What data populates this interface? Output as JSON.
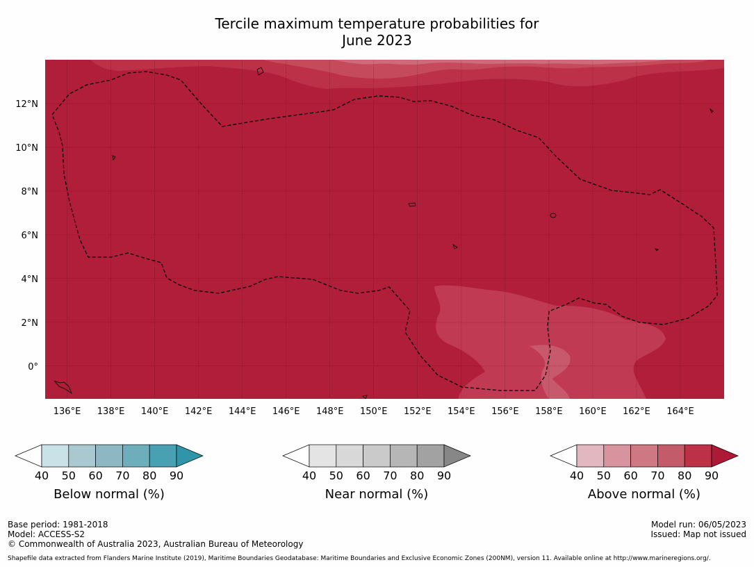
{
  "title": {
    "line1": "Tercile maximum temperature probabilities for",
    "line2": "June 2023"
  },
  "map": {
    "lon_range": [
      135,
      166
    ],
    "lat_range": [
      -1.5,
      14
    ],
    "background_color": "#b11e3a",
    "lon_ticks": [
      136,
      138,
      140,
      142,
      144,
      146,
      148,
      150,
      152,
      154,
      156,
      158,
      160,
      162,
      164
    ],
    "lon_labels": [
      "136°E",
      "138°E",
      "140°E",
      "142°E",
      "144°E",
      "146°E",
      "148°E",
      "150°E",
      "152°E",
      "154°E",
      "156°E",
      "158°E",
      "160°E",
      "162°E",
      "164°E"
    ],
    "lat_ticks": [
      0,
      2,
      4,
      6,
      8,
      10,
      12
    ],
    "lat_labels": [
      "0°",
      "2°N",
      "4°N",
      "6°N",
      "8°N",
      "10°N",
      "12°N"
    ],
    "grid": true,
    "eez_boundary_style": "dashed"
  },
  "colorbars": [
    {
      "id": "below",
      "title": "Below normal (%)",
      "ticks": [
        "40",
        "50",
        "60",
        "70",
        "80",
        "90"
      ],
      "colors": [
        "#ffffff",
        "#c8e2e8",
        "#a9c8cf",
        "#8db7c2",
        "#6eaebb",
        "#48a1b2",
        "#3195a9"
      ]
    },
    {
      "id": "near",
      "title": "Near normal (%)",
      "ticks": [
        "40",
        "50",
        "60",
        "70",
        "80",
        "90"
      ],
      "colors": [
        "#ffffff",
        "#e4e4e4",
        "#d8d8d8",
        "#cacaca",
        "#b6b6b6",
        "#a2a2a2",
        "#878787"
      ]
    },
    {
      "id": "above",
      "title": "Above normal (%)",
      "ticks": [
        "40",
        "50",
        "60",
        "70",
        "80",
        "90"
      ],
      "colors": [
        "#ffffff",
        "#e2b7c0",
        "#d8949e",
        "#cd7882",
        "#c45b6a",
        "#bc3048",
        "#ad1a38"
      ]
    }
  ],
  "footer": {
    "base_period": "Base period: 1981-2018",
    "model": "Model: ACCESS-S2",
    "copyright": "© Commonwealth of Australia 2023, Australian Bureau of Meteorology",
    "model_run": "Model run: 06/05/2023",
    "issued": "Issued: Map not issued",
    "shapefile_note": "Shapefile data extracted from Flanders Marine Institute (2019), Maritime Boundaries Geodatabase: Maritime Boundaries and Exclusive Economic Zones (200NM), version 11. Available online at http://www.marineregions.org/."
  }
}
